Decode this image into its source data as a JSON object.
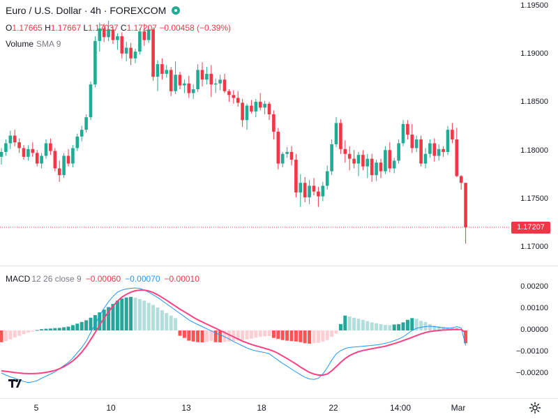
{
  "header": {
    "symbol_title": "Euro / U.S. Dollar · 4h · FOREXCOM",
    "status_icon": "market-open-dot-icon"
  },
  "ohlc": {
    "o_label": "O",
    "o_value": "1.17665",
    "h_label": "H",
    "h_value": "1.17667",
    "l_label": "L",
    "l_value": "1.17037",
    "c_label": "C",
    "c_value": "1.17207",
    "change": "−0.00458 (−0.39%)"
  },
  "volume": {
    "label": "Volume",
    "sma": "SMA 9"
  },
  "price_axis": {
    "labels": [
      "1.19500",
      "1.19000",
      "1.18500",
      "1.18000",
      "1.17500",
      "1.17000"
    ],
    "current_price": "1.17207"
  },
  "macd": {
    "label": "MACD",
    "params": "12 26 close 9",
    "histogram": "−0.00060",
    "macd_value": "−0.00070",
    "signal_value": "−0.00010",
    "axis_labels": [
      "0.00200",
      "0.00100",
      "0.00000",
      "−0.00100",
      "−0.00200"
    ]
  },
  "time_axis": {
    "labels": [
      "5",
      "10",
      "13",
      "18",
      "22",
      "14:00",
      "Mar"
    ]
  },
  "colors": {
    "up": "#22ab94",
    "down": "#f23645",
    "macd_line": "#2196f3",
    "signal_line": "#ff4081",
    "hist_up_strong": "#26a69a",
    "hist_up_weak": "#b2dfdb",
    "hist_down_strong": "#ff5252",
    "hist_down_weak": "#ffcdd2"
  },
  "chart_data": [
    {
      "type": "candlestick",
      "title": "Euro / U.S. Dollar · 4h · FOREXCOM",
      "ylim": [
        1.1685,
        1.1965
      ],
      "candles": [
        [
          1.1794,
          1.1803,
          1.1786,
          1.1799
        ],
        [
          1.1799,
          1.1812,
          1.1795,
          1.1808
        ],
        [
          1.1808,
          1.1821,
          1.1802,
          1.1816
        ],
        [
          1.1816,
          1.1822,
          1.1805,
          1.1809
        ],
        [
          1.1809,
          1.1813,
          1.1798,
          1.1803
        ],
        [
          1.1803,
          1.1806,
          1.1791,
          1.1794
        ],
        [
          1.1794,
          1.1806,
          1.179,
          1.1802
        ],
        [
          1.1802,
          1.1809,
          1.1794,
          1.1798
        ],
        [
          1.1798,
          1.1801,
          1.1784,
          1.1787
        ],
        [
          1.1787,
          1.1798,
          1.1782,
          1.1795
        ],
        [
          1.1795,
          1.1812,
          1.1792,
          1.1808
        ],
        [
          1.1808,
          1.1813,
          1.1796,
          1.18
        ],
        [
          1.18,
          1.1803,
          1.1779,
          1.1782
        ],
        [
          1.1782,
          1.179,
          1.1768,
          1.1775
        ],
        [
          1.1775,
          1.1798,
          1.1772,
          1.1795
        ],
        [
          1.1795,
          1.1802,
          1.1784,
          1.1787
        ],
        [
          1.1787,
          1.1806,
          1.1783,
          1.1803
        ],
        [
          1.1803,
          1.1818,
          1.18,
          1.1815
        ],
        [
          1.1815,
          1.1826,
          1.181,
          1.1822
        ],
        [
          1.1822,
          1.1838,
          1.1819,
          1.1835
        ],
        [
          1.1835,
          1.1872,
          1.1832,
          1.1869
        ],
        [
          1.1869,
          1.1919,
          1.1866,
          1.1914
        ],
        [
          1.1914,
          1.1933,
          1.1903,
          1.1927
        ],
        [
          1.1927,
          1.1932,
          1.1913,
          1.1918
        ],
        [
          1.1918,
          1.1935,
          1.1914,
          1.1926
        ],
        [
          1.1926,
          1.1929,
          1.1911,
          1.1915
        ],
        [
          1.1915,
          1.1922,
          1.1905,
          1.1919
        ],
        [
          1.1919,
          1.1923,
          1.1896,
          1.1901
        ],
        [
          1.1901,
          1.1913,
          1.1893,
          1.1907
        ],
        [
          1.1907,
          1.1912,
          1.1889,
          1.1896
        ],
        [
          1.1896,
          1.1906,
          1.1891,
          1.1903
        ],
        [
          1.1903,
          1.1927,
          1.19,
          1.1924
        ],
        [
          1.1924,
          1.1932,
          1.1909,
          1.1915
        ],
        [
          1.1915,
          1.193,
          1.1912,
          1.1926
        ],
        [
          1.1926,
          1.1928,
          1.1873,
          1.1877
        ],
        [
          1.1877,
          1.1894,
          1.1862,
          1.189
        ],
        [
          1.189,
          1.1896,
          1.1874,
          1.188
        ],
        [
          1.188,
          1.1889,
          1.1876,
          1.1884
        ],
        [
          1.1884,
          1.1887,
          1.1857,
          1.1862
        ],
        [
          1.1862,
          1.1893,
          1.1859,
          1.1879
        ],
        [
          1.1879,
          1.1882,
          1.1864,
          1.1868
        ],
        [
          1.1868,
          1.1874,
          1.186,
          1.187
        ],
        [
          1.187,
          1.1878,
          1.1855,
          1.186
        ],
        [
          1.186,
          1.1869,
          1.1854,
          1.1864
        ],
        [
          1.1864,
          1.189,
          1.1861,
          1.1884
        ],
        [
          1.1884,
          1.1892,
          1.1867,
          1.1874
        ],
        [
          1.1874,
          1.1887,
          1.1869,
          1.188
        ],
        [
          1.188,
          1.1889,
          1.1856,
          1.1869
        ],
        [
          1.1869,
          1.1875,
          1.186,
          1.187
        ],
        [
          1.187,
          1.1879,
          1.1863,
          1.1874
        ],
        [
          1.1874,
          1.188,
          1.186,
          1.1862
        ],
        [
          1.1862,
          1.1864,
          1.1851,
          1.1858
        ],
        [
          1.1858,
          1.1863,
          1.1849,
          1.1855
        ],
        [
          1.1855,
          1.1862,
          1.1846,
          1.185
        ],
        [
          1.185,
          1.1854,
          1.1825,
          1.1832
        ],
        [
          1.1832,
          1.1849,
          1.1822,
          1.1847
        ],
        [
          1.1847,
          1.1853,
          1.1839,
          1.1841
        ],
        [
          1.1841,
          1.1854,
          1.1835,
          1.1851
        ],
        [
          1.1851,
          1.186,
          1.1842,
          1.1845
        ],
        [
          1.1845,
          1.1852,
          1.1838,
          1.1849
        ],
        [
          1.1849,
          1.1851,
          1.1832,
          1.1838
        ],
        [
          1.1838,
          1.1842,
          1.1812,
          1.182
        ],
        [
          1.182,
          1.1824,
          1.1781,
          1.1787
        ],
        [
          1.1787,
          1.1799,
          1.1783,
          1.1797
        ],
        [
          1.1797,
          1.1804,
          1.1793,
          1.1799
        ],
        [
          1.1799,
          1.1805,
          1.1785,
          1.1791
        ],
        [
          1.1791,
          1.1797,
          1.1752,
          1.1757
        ],
        [
          1.1757,
          1.1776,
          1.1742,
          1.1767
        ],
        [
          1.1767,
          1.1773,
          1.1747,
          1.1752
        ],
        [
          1.1752,
          1.177,
          1.1745,
          1.1764
        ],
        [
          1.1764,
          1.1772,
          1.1754,
          1.1758
        ],
        [
          1.1758,
          1.1763,
          1.1742,
          1.1753
        ],
        [
          1.1753,
          1.1768,
          1.1748,
          1.1764
        ],
        [
          1.1764,
          1.1785,
          1.176,
          1.1779
        ],
        [
          1.1779,
          1.1812,
          1.1775,
          1.1807
        ],
        [
          1.1807,
          1.1835,
          1.1804,
          1.1829
        ],
        [
          1.1829,
          1.1833,
          1.1797,
          1.1802
        ],
        [
          1.1802,
          1.1811,
          1.1788,
          1.1797
        ],
        [
          1.1797,
          1.1805,
          1.178,
          1.1792
        ],
        [
          1.1792,
          1.1801,
          1.1782,
          1.1787
        ],
        [
          1.1787,
          1.1799,
          1.1774,
          1.1796
        ],
        [
          1.1796,
          1.1801,
          1.178,
          1.1784
        ],
        [
          1.1784,
          1.1797,
          1.1772,
          1.1792
        ],
        [
          1.1792,
          1.1797,
          1.1768,
          1.1775
        ],
        [
          1.1775,
          1.1791,
          1.1769,
          1.1788
        ],
        [
          1.1788,
          1.1792,
          1.1772,
          1.1779
        ],
        [
          1.1779,
          1.1805,
          1.1776,
          1.1801
        ],
        [
          1.1801,
          1.1809,
          1.1778,
          1.1782
        ],
        [
          1.1782,
          1.1793,
          1.1777,
          1.179
        ],
        [
          1.179,
          1.1812,
          1.1787,
          1.1808
        ],
        [
          1.1808,
          1.1832,
          1.1805,
          1.1828
        ],
        [
          1.1828,
          1.1832,
          1.1812,
          1.1817
        ],
        [
          1.1817,
          1.1828,
          1.1798,
          1.1803
        ],
        [
          1.1803,
          1.1816,
          1.1799,
          1.1812
        ],
        [
          1.1812,
          1.1816,
          1.1784,
          1.1787
        ],
        [
          1.1787,
          1.1803,
          1.1782,
          1.1797
        ],
        [
          1.1797,
          1.1812,
          1.1793,
          1.1808
        ],
        [
          1.1808,
          1.1813,
          1.1789,
          1.1795
        ],
        [
          1.1795,
          1.1807,
          1.179,
          1.1802
        ],
        [
          1.1802,
          1.1805,
          1.1794,
          1.1799
        ],
        [
          1.1799,
          1.1826,
          1.1796,
          1.1822
        ],
        [
          1.1822,
          1.1829,
          1.1808,
          1.1812
        ],
        [
          1.1812,
          1.1824,
          1.1773,
          1.1774
        ],
        [
          1.1774,
          1.1775,
          1.176,
          1.1767
        ],
        [
          1.1767,
          1.1767,
          1.1704,
          1.1721
        ]
      ]
    },
    {
      "type": "macd",
      "title": "MACD 12 26 close 9",
      "ylim": [
        -0.0026,
        0.0023
      ],
      "histogram": [
        -0.00055,
        -0.0005,
        -0.00042,
        -0.00033,
        -0.00025,
        -0.00017,
        -0.0001,
        -5e-05,
        2e-05,
        6e-05,
        8e-05,
        9e-05,
        0.00011,
        0.00012,
        0.00015,
        0.00018,
        0.00025,
        0.00032,
        0.0004,
        0.00048,
        0.0006,
        0.00072,
        0.00085,
        0.00098,
        0.0011,
        0.00125,
        0.0014,
        0.0015,
        0.00155,
        0.00158,
        0.00154,
        0.00148,
        0.0014,
        0.0013,
        0.0012,
        0.00108,
        0.00095,
        0.00082,
        0.0007,
        0.00058,
        -0.00025,
        -0.00035,
        -0.00048,
        -0.00052,
        -0.00055,
        -0.00056,
        -0.00054,
        -0.0005,
        -0.00055,
        -0.00056,
        -0.00054,
        -0.00052,
        -0.0005,
        -0.00048,
        -0.00045,
        -0.00042,
        -0.00038,
        -0.00034,
        -0.0003,
        -0.00028,
        -0.00026,
        -0.00035,
        -0.0004,
        -0.00045,
        -0.00048,
        -0.0005,
        -0.00052,
        -0.00055,
        -0.0006,
        -0.00062,
        -0.0006,
        -0.00058,
        -0.00052,
        -0.00045,
        -0.0003,
        -0.00015,
        0.0003,
        0.0007,
        0.00066,
        0.0006,
        0.00055,
        0.0005,
        0.00044,
        0.00038,
        0.00034,
        0.0003,
        0.00026,
        0.00025,
        0.00028,
        0.0003,
        0.00038,
        0.0005,
        0.00058,
        0.00055,
        0.00045,
        0.0004,
        0.0003,
        0.00022,
        0.0002,
        0.00018,
        0.00015,
        0.00014,
        0.00012,
        8e-05,
        -0.0006
      ],
      "macd": [
        -0.002,
        -0.0021,
        -0.00218,
        -0.00225,
        -0.00232,
        -0.0024,
        -0.00245,
        -0.00242,
        -0.00236,
        -0.00225,
        -0.00215,
        -0.00205,
        -0.00195,
        -0.0018,
        -0.00165,
        -0.0015,
        -0.0013,
        -0.00105,
        -0.0008,
        -0.0005,
        -0.0001,
        0.0003,
        0.0007,
        0.00105,
        0.00135,
        0.0016,
        0.0018,
        0.0019,
        0.00195,
        0.00198,
        0.002,
        0.00198,
        0.0019,
        0.0018,
        0.00168,
        0.00155,
        0.0014,
        0.00125,
        0.0011,
        0.00095,
        0.0008,
        0.00065,
        0.0005,
        0.00038,
        0.00028,
        0.00018,
        8e-05,
        -2e-05,
        -0.00012,
        -0.0002,
        -0.0003,
        -0.0004,
        -0.00052,
        -0.00062,
        -0.00072,
        -0.00082,
        -0.0009,
        -0.00096,
        -0.001,
        -0.00104,
        -0.0011,
        -0.00125,
        -0.0014,
        -0.00155,
        -0.00168,
        -0.00182,
        -0.00195,
        -0.00208,
        -0.0022,
        -0.00228,
        -0.0023,
        -0.00225,
        -0.00205,
        -0.00175,
        -0.0014,
        -0.0011,
        -0.00095,
        -0.00085,
        -0.0008,
        -0.00078,
        -0.00076,
        -0.00074,
        -0.00072,
        -0.0007,
        -0.00068,
        -0.00065,
        -0.0006,
        -0.00055,
        -0.00048,
        -0.0004,
        -0.0003,
        -0.00015,
        0.0,
        0.0001,
        0.00015,
        0.00018,
        0.0002,
        0.00018,
        0.00015,
        0.00012,
        0.0001,
        0.00012,
        0.00018,
        0.00012,
        -0.0007
      ],
      "signal": [
        -0.0019,
        -0.00192,
        -0.00195,
        -0.00198,
        -0.002,
        -0.00202,
        -0.00203,
        -0.00203,
        -0.00202,
        -0.002,
        -0.00197,
        -0.00193,
        -0.00188,
        -0.0018,
        -0.0017,
        -0.00158,
        -0.00143,
        -0.00125,
        -0.00102,
        -0.00075,
        -0.00043,
        -0.0001,
        0.00025,
        0.00058,
        0.00088,
        0.00115,
        0.00138,
        0.00157,
        0.0017,
        0.0018,
        0.00187,
        0.0019,
        0.0019,
        0.00186,
        0.00178,
        0.00168,
        0.00155,
        0.00142,
        0.00128,
        0.00114,
        0.001,
        0.00088,
        0.00075,
        0.00062,
        0.0005,
        0.0004,
        0.0003,
        0.0002,
        0.0001,
        0.0,
        -0.0001,
        -0.0002,
        -0.0003,
        -0.0004,
        -0.0005,
        -0.00058,
        -0.00066,
        -0.00072,
        -0.00078,
        -0.00084,
        -0.0009,
        -0.00098,
        -0.00108,
        -0.0012,
        -0.00132,
        -0.00145,
        -0.00158,
        -0.00172,
        -0.00185,
        -0.00197,
        -0.00205,
        -0.0021,
        -0.0021,
        -0.00205,
        -0.0019,
        -0.0017,
        -0.0015,
        -0.00132,
        -0.00118,
        -0.00108,
        -0.001,
        -0.00094,
        -0.0009,
        -0.00086,
        -0.00082,
        -0.00078,
        -0.00074,
        -0.00068,
        -0.00062,
        -0.00055,
        -0.00048,
        -0.0004,
        -0.00032,
        -0.00024,
        -0.00016,
        -0.0001,
        -5e-05,
        -2e-05,
        0.0,
        2e-05,
        3e-05,
        4e-05,
        5e-05,
        4e-05,
        -0.0001
      ]
    }
  ]
}
